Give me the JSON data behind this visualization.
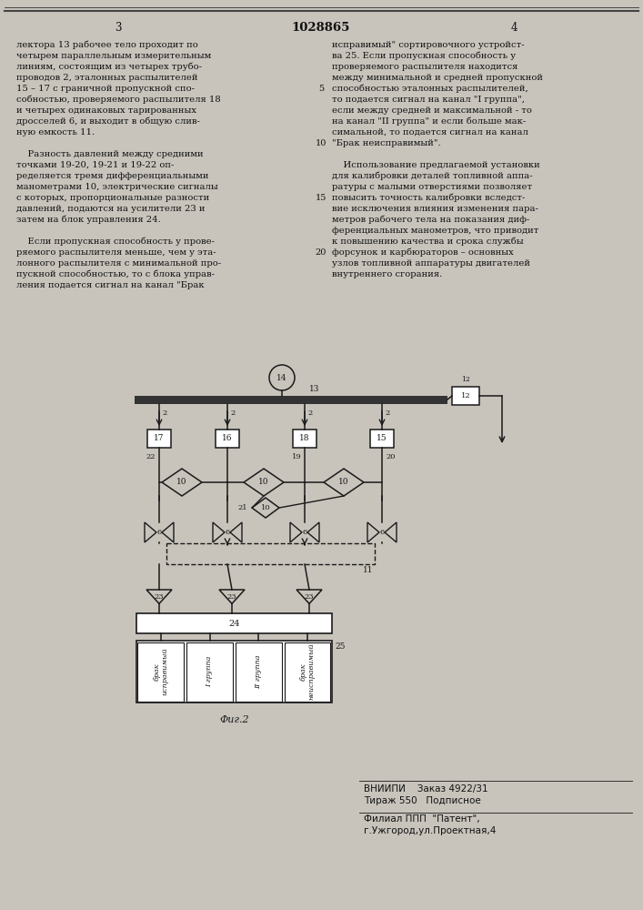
{
  "bg_color": "#c8c4bc",
  "page_color": "#ddd9d0",
  "text_color": "#111111",
  "title_text": "1028865",
  "page_left_num": "3",
  "page_right_num": "4",
  "left_column_text": [
    "лектора 13 рабочее тело проходит по",
    "четырем параллельным измерительным",
    "линиям, состоящим из четырех трубо-",
    "проводов 2, эталонных распылителей",
    "15 – 17 с граничной пропускной спо-",
    "собностью, проверяемого распылителя 18",
    "и четырех одинаковых тарированных",
    "дросселей 6, и выходит в общую слив-",
    "ную емкость 11.",
    "",
    "    Разность давлений между средними",
    "точками 19-20, 19-21 и 19-22 оп-",
    "ределяется тремя дифференциальными",
    "манометрами 10, электрические сигналы",
    "с которых, пропорциональные разности",
    "давлений, подаются на усилители 23 и",
    "затем на блок управления 24.",
    "",
    "    Если пропускная способность у прове-",
    "ряемого распылителя меньше, чем у эта-",
    "лонного распылителя с минимальной про-",
    "пускной способностью, то с блока управ-",
    "ления подается сигнал на канал \"Брак"
  ],
  "right_column_text": [
    "исправимый\" сортировочного устройст-",
    "ва 25. Если пропускная способность у",
    "проверяемого распылителя находится",
    "между минимальной и средней пропускной",
    "способностью эталонных распылителей,",
    "то подается сигнал на канал \"I группа\",",
    "если между средней и максимальной - то",
    "на канал \"II группа\" и если больше мак-",
    "симальной, то подается сигнал на канал",
    "\"Брак неисправимый\".",
    "",
    "    Использование предлагаемой установки",
    "для калибровки деталей топливной аппа-",
    "ратуры с малыми отверстиями позволяет",
    "повысить точность калибровки вследст-",
    "вие исключения влияния изменения пара-",
    "метров рабочего тела на показания диф-",
    "ференциальных манометров, что приводит",
    "к повышению качества и срока службы",
    "форсунок и карбюраторов – основных",
    "узлов топливной аппаратуры двигателей",
    "внутреннего сгорания."
  ],
  "line_numbers": [
    "5",
    "10",
    "15",
    "20"
  ],
  "bottom_text1": "ВНИИПИ    Заказ 4922/31",
  "bottom_text2": "Тираж 550   Подписное",
  "bottom_text3": "Филиал ППП  \"Патент\",",
  "bottom_text4": "г.Ужгород,ул.Проектная,4",
  "fig_caption": "Фиг.2"
}
